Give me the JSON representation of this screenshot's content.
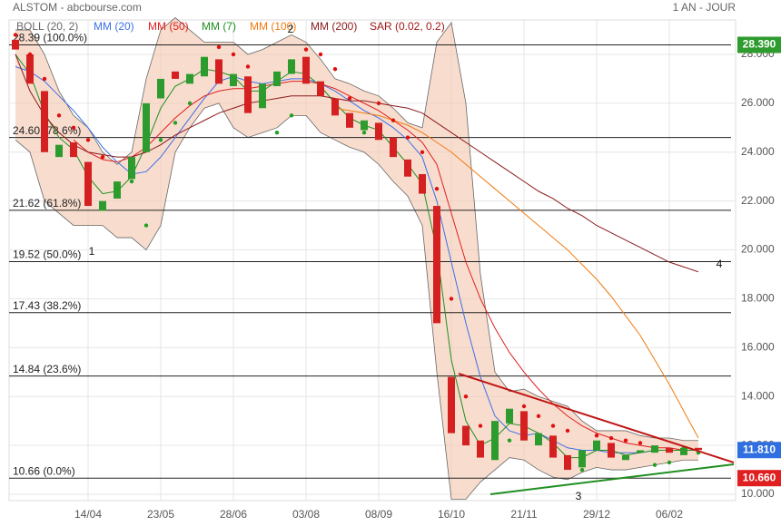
{
  "chart_data": {
    "type": "candlestick",
    "title": "ALSTOM - abcbourse.com",
    "period": "1 AN - JOUR",
    "categories": [
      null,
      null,
      null,
      null,
      null,
      "14/04",
      null,
      null,
      null,
      null,
      "23/05",
      null,
      null,
      null,
      null,
      "28/06",
      null,
      null,
      null,
      null,
      "03/08",
      null,
      null,
      null,
      null,
      "08/09",
      null,
      null,
      null,
      null,
      "16/10",
      null,
      null,
      null,
      null,
      "21/11",
      null,
      null,
      null,
      null,
      "29/12",
      null,
      null,
      null,
      null,
      "06/02",
      null,
      null
    ],
    "open": [
      28.6,
      28.0,
      26.5,
      23.8,
      24.4,
      23.6,
      21.6,
      22.1,
      22.9,
      24.0,
      26.2,
      27.3,
      26.8,
      27.1,
      27.8,
      26.7,
      27.1,
      25.8,
      26.7,
      27.2,
      27.9,
      26.9,
      26.2,
      25.6,
      24.9,
      25.2,
      24.6,
      23.7,
      23.1,
      21.8,
      14.8,
      12.8,
      12.2,
      11.4,
      12.9,
      13.4,
      12.0,
      12.4,
      11.6,
      11.1,
      11.8,
      12.1,
      11.4,
      11.7,
      11.7,
      11.9,
      11.6,
      11.9
    ],
    "close": [
      28.2,
      26.8,
      24.0,
      24.3,
      23.8,
      21.8,
      22.0,
      22.8,
      23.8,
      26.0,
      27.0,
      27.0,
      27.2,
      27.9,
      26.8,
      27.2,
      25.6,
      26.8,
      27.3,
      27.8,
      26.8,
      26.3,
      25.5,
      25.0,
      25.3,
      24.5,
      23.8,
      23.0,
      22.3,
      17.0,
      12.5,
      12.0,
      11.5,
      13.0,
      13.5,
      12.2,
      12.5,
      11.5,
      11.0,
      11.8,
      12.2,
      11.5,
      11.6,
      11.8,
      12.0,
      11.7,
      11.9,
      11.81
    ],
    "color_up": "#2e9b2e",
    "color_down": "#d42020",
    "bollinger": {
      "name": "BOLL (20, 2)",
      "color": "#666666",
      "fill": "#f3c7ad",
      "upper": [
        29.0,
        29.0,
        28.0,
        26.5,
        25.5,
        25.0,
        24.0,
        23.5,
        24.0,
        27.0,
        29.0,
        29.5,
        29.0,
        28.5,
        28.5,
        28.5,
        28.0,
        28.2,
        28.5,
        28.8,
        28.5,
        27.8,
        27.0,
        26.8,
        26.5,
        26.3,
        25.8,
        25.2,
        25.0,
        28.5,
        29.3,
        26.0,
        19.0,
        15.0,
        14.2,
        14.3,
        14.0,
        13.8,
        13.6,
        13.0,
        12.6,
        12.6,
        12.6,
        12.4,
        12.3,
        12.3,
        12.2,
        12.2
      ],
      "lower": [
        24.5,
        24.0,
        22.0,
        21.5,
        21.0,
        21.0,
        21.0,
        20.5,
        20.5,
        20.0,
        21.0,
        24.0,
        25.0,
        25.8,
        26.0,
        25.0,
        24.6,
        24.8,
        25.0,
        25.5,
        25.5,
        24.8,
        24.5,
        24.2,
        24.0,
        23.5,
        22.8,
        22.2,
        21.0,
        15.0,
        9.8,
        9.8,
        10.5,
        11.0,
        11.5,
        11.4,
        11.0,
        10.7,
        10.6,
        10.9,
        11.1,
        11.0,
        11.0,
        11.1,
        11.2,
        11.3,
        11.4,
        11.4
      ]
    },
    "series": [
      {
        "name": "MM (20)",
        "color": "#3d6fe6",
        "values": [
          27.5,
          27.3,
          26.9,
          26.3,
          25.7,
          25.0,
          24.2,
          23.6,
          23.1,
          23.2,
          23.8,
          24.6,
          25.4,
          26.2,
          26.9,
          27.1,
          26.9,
          26.8,
          26.9,
          27.0,
          27.0,
          26.8,
          26.5,
          26.1,
          25.7,
          25.4,
          25.0,
          24.5,
          23.8,
          22.0,
          19.5,
          17.0,
          14.8,
          13.2,
          12.6,
          12.4,
          12.5,
          12.2,
          11.9,
          11.8,
          11.8,
          11.7,
          11.7,
          11.7,
          11.8,
          11.8,
          11.8,
          11.8
        ]
      },
      {
        "name": "MM (50)",
        "color": "#e02020",
        "values": [
          null,
          null,
          null,
          null,
          24.5,
          24.0,
          23.7,
          23.6,
          23.8,
          24.2,
          24.8,
          25.4,
          25.9,
          26.3,
          26.5,
          26.6,
          26.6,
          26.7,
          26.8,
          26.9,
          26.9,
          26.8,
          26.6,
          26.3,
          26.0,
          25.7,
          25.3,
          24.9,
          24.4,
          23.5,
          21.5,
          19.5,
          18.0,
          16.8,
          15.8,
          15.0,
          14.3,
          13.7,
          13.2,
          12.8,
          12.5,
          12.3,
          12.1,
          12.0,
          11.9,
          11.9,
          11.8,
          11.8
        ]
      },
      {
        "name": "MM (7)",
        "color": "#1f8f1f",
        "values": [
          28.0,
          27.2,
          25.6,
          24.6,
          24.1,
          23.0,
          22.3,
          22.4,
          23.0,
          24.3,
          25.8,
          26.7,
          27.0,
          27.4,
          27.3,
          27.1,
          26.5,
          26.5,
          26.9,
          27.3,
          27.2,
          26.7,
          26.0,
          25.4,
          25.1,
          24.9,
          24.2,
          23.5,
          22.7,
          20.0,
          15.5,
          13.0,
          12.0,
          12.3,
          12.9,
          12.8,
          12.5,
          12.1,
          11.5,
          11.5,
          11.8,
          11.8,
          11.6,
          11.7,
          11.8,
          11.8,
          11.8,
          11.8
        ]
      },
      {
        "name": "MM (100)",
        "color": "#f07a10",
        "values": [
          null,
          null,
          null,
          null,
          null,
          null,
          null,
          null,
          null,
          null,
          null,
          null,
          null,
          null,
          null,
          null,
          null,
          null,
          null,
          null,
          null,
          null,
          25.8,
          25.7,
          25.6,
          25.5,
          25.3,
          25.1,
          24.8,
          24.4,
          24.0,
          23.5,
          23.0,
          22.5,
          22.0,
          21.5,
          21.0,
          20.5,
          20.0,
          19.4,
          18.8,
          18.1,
          17.3,
          16.5,
          15.5,
          14.5,
          13.4,
          12.3
        ]
      },
      {
        "name": "MM (200)",
        "color": "#8b1a1a",
        "values": [
          28.0,
          26.5,
          25.5,
          24.8,
          24.3,
          24.0,
          23.9,
          23.8,
          23.8,
          24.0,
          24.3,
          24.7,
          25.0,
          25.3,
          25.6,
          25.8,
          26.0,
          26.1,
          26.2,
          26.3,
          26.3,
          26.3,
          26.2,
          26.1,
          26.1,
          26.0,
          25.9,
          25.8,
          25.6,
          25.2,
          24.8,
          24.4,
          24.0,
          23.6,
          23.2,
          22.8,
          22.4,
          22.1,
          21.7,
          21.4,
          21.0,
          20.7,
          20.4,
          20.1,
          19.8,
          19.5,
          19.3,
          19.1
        ]
      }
    ],
    "sar": {
      "name": "SAR (0.02, 0.2)",
      "color": "#a01818",
      "color_above": "#e01010",
      "color_below": "#22a022",
      "values": [
        28.8,
        28.0,
        27.0,
        25.5,
        25.0,
        24.5,
        23.8,
        22.5,
        22.8,
        21.0,
        24.5,
        25.2,
        26.0,
        27.8,
        28.3,
        28.0,
        27.5,
        26.0,
        24.8,
        25.5,
        28.2,
        28.0,
        27.4,
        26.2,
        24.8,
        26.0,
        25.3,
        24.6,
        24.0,
        22.5,
        18.0,
        14.0,
        12.8,
        11.8,
        12.2,
        13.6,
        13.2,
        12.8,
        12.6,
        11.0,
        12.4,
        12.3,
        12.2,
        12.1,
        11.2,
        11.3,
        11.9,
        11.7
      ]
    },
    "fibonacci": [
      {
        "value": 28.39,
        "label": "28.39 (100.0%)"
      },
      {
        "value": 24.6,
        "label": "24.60 (78.6%)"
      },
      {
        "value": 21.62,
        "label": "21.62 (61.8%)"
      },
      {
        "value": 19.52,
        "label": "19.52 (50.0%)"
      },
      {
        "value": 17.43,
        "label": "17.43 (38.2%)"
      },
      {
        "value": 14.84,
        "label": "14.84 (23.6%)"
      },
      {
        "value": 10.66,
        "label": "10.66 (0.0%)"
      }
    ],
    "price_badges": [
      {
        "value": 28.39,
        "label": "28.390",
        "color": "#2e9b2e"
      },
      {
        "value": 11.81,
        "label": "11.810",
        "color": "#2f6fe0"
      },
      {
        "value": 10.66,
        "label": "10.660",
        "color": "#e02020"
      }
    ],
    "annotations": [
      "1",
      "2",
      "3",
      "4"
    ],
    "ylim": [
      9.74,
      29.41
    ],
    "yticks": [
      {
        "value": 10,
        "label": "10.000"
      },
      {
        "value": 12,
        "label": "12.000"
      },
      {
        "value": 14,
        "label": "14.000"
      },
      {
        "value": 16,
        "label": "16.000"
      },
      {
        "value": 18,
        "label": "18.000"
      },
      {
        "value": 20,
        "label": "20.000"
      },
      {
        "value": 22,
        "label": "22.000"
      },
      {
        "value": 24,
        "label": "24.000"
      },
      {
        "value": 26,
        "label": "26.000"
      },
      {
        "value": 28,
        "label": "28.000"
      }
    ],
    "grid": true
  }
}
